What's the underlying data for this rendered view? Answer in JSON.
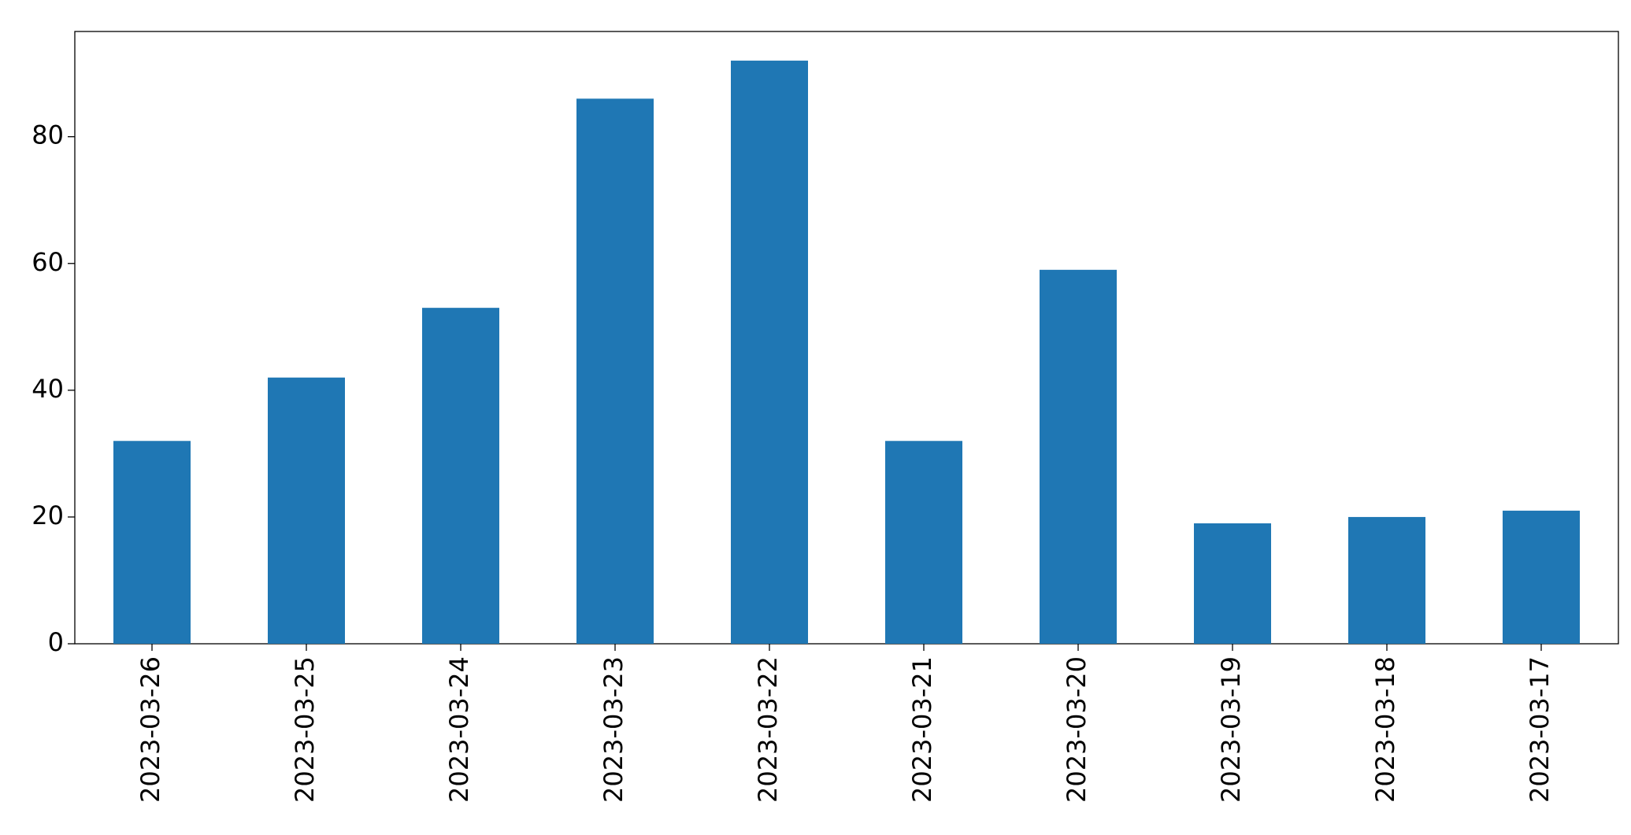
{
  "chart_data": {
    "type": "bar",
    "categories": [
      "2023-03-26",
      "2023-03-25",
      "2023-03-24",
      "2023-03-23",
      "2023-03-22",
      "2023-03-21",
      "2023-03-20",
      "2023-03-19",
      "2023-03-18",
      "2023-03-17"
    ],
    "values": [
      32,
      42,
      53,
      86,
      92,
      32,
      59,
      19,
      20,
      21
    ],
    "color": "#1f77b4",
    "ylim": [
      0,
      96.6
    ],
    "yticks": [
      0,
      20,
      40,
      60,
      80
    ],
    "grid": false
  }
}
